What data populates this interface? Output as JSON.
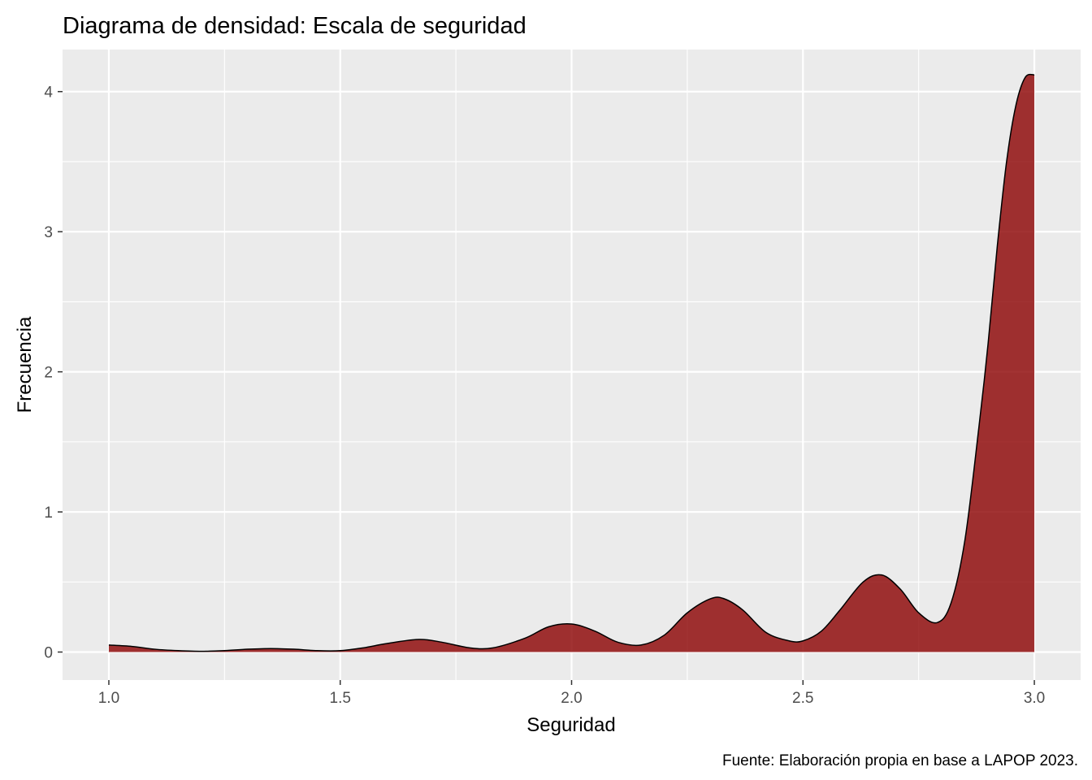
{
  "chart_data": {
    "type": "area",
    "title": "Diagrama de densidad: Escala de seguridad",
    "xlabel": "Seguridad",
    "ylabel": "Frecuencia",
    "caption": "Fuente: Elaboración propia en base a LAPOP 2023.",
    "xlim": [
      0.9,
      3.1
    ],
    "ylim": [
      -0.2,
      4.3
    ],
    "x_ticks": [
      {
        "value": 1.0,
        "label": "1.0"
      },
      {
        "value": 1.5,
        "label": "1.5"
      },
      {
        "value": 2.0,
        "label": "2.0"
      },
      {
        "value": 2.5,
        "label": "2.5"
      },
      {
        "value": 3.0,
        "label": "3.0"
      }
    ],
    "y_ticks": [
      {
        "value": 0,
        "label": "0"
      },
      {
        "value": 1,
        "label": "1"
      },
      {
        "value": 2,
        "label": "2"
      },
      {
        "value": 3,
        "label": "3"
      },
      {
        "value": 4,
        "label": "4"
      }
    ],
    "grid": true,
    "x": [
      1.0,
      1.05,
      1.1,
      1.15,
      1.2,
      1.25,
      1.3,
      1.35,
      1.4,
      1.45,
      1.5,
      1.55,
      1.6,
      1.67,
      1.72,
      1.78,
      1.83,
      1.9,
      1.95,
      2.0,
      2.05,
      2.1,
      2.15,
      2.2,
      2.25,
      2.3,
      2.33,
      2.37,
      2.42,
      2.47,
      2.5,
      2.54,
      2.58,
      2.63,
      2.67,
      2.71,
      2.75,
      2.79,
      2.82,
      2.85,
      2.88,
      2.9,
      2.92,
      2.94,
      2.96,
      2.98,
      3.0
    ],
    "y": [
      0.05,
      0.04,
      0.02,
      0.01,
      0.005,
      0.01,
      0.02,
      0.025,
      0.02,
      0.01,
      0.01,
      0.03,
      0.06,
      0.09,
      0.07,
      0.03,
      0.03,
      0.1,
      0.18,
      0.2,
      0.15,
      0.07,
      0.05,
      0.12,
      0.28,
      0.38,
      0.38,
      0.3,
      0.14,
      0.08,
      0.08,
      0.15,
      0.3,
      0.5,
      0.55,
      0.45,
      0.28,
      0.21,
      0.35,
      0.8,
      1.6,
      2.2,
      2.9,
      3.5,
      3.9,
      4.1,
      4.12
    ],
    "fill_color": "#8b0000",
    "fill_opacity": 0.8,
    "line_color": "#000000",
    "panel_color": "#ebebeb",
    "grid_color": "#ffffff"
  }
}
